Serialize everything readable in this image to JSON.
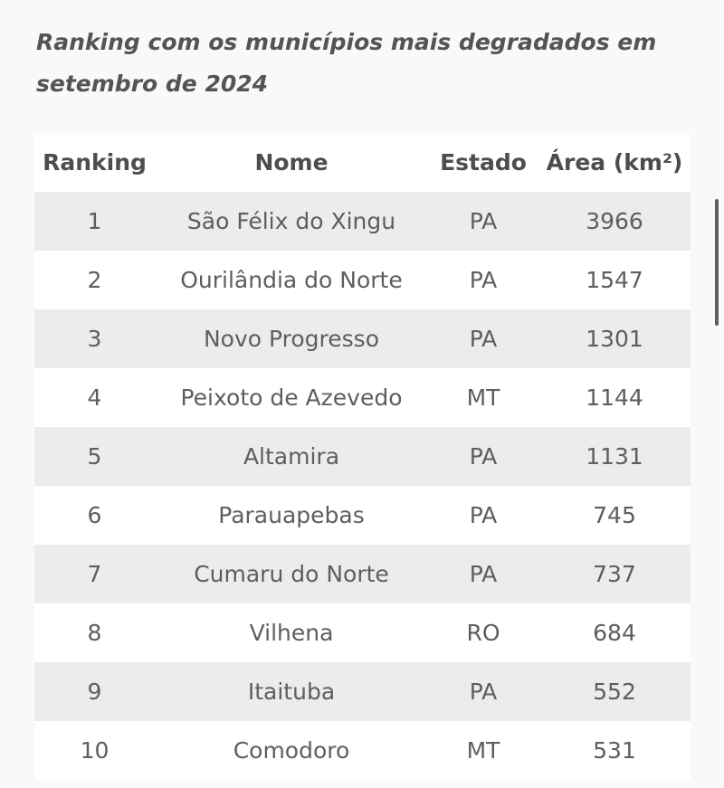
{
  "title": "Ranking com os municípios mais degradados em setembro de 2024",
  "table": {
    "headers": {
      "rank": "Ranking",
      "name": "Nome",
      "state": "Estado",
      "area": "Área (km²)"
    },
    "rows": [
      {
        "rank": "1",
        "name": "São Félix do Xingu",
        "state": "PA",
        "area": "3966"
      },
      {
        "rank": "2",
        "name": "Ourilândia do Norte",
        "state": "PA",
        "area": "1547"
      },
      {
        "rank": "3",
        "name": "Novo Progresso",
        "state": "PA",
        "area": "1301"
      },
      {
        "rank": "4",
        "name": "Peixoto de Azevedo",
        "state": "MT",
        "area": "1144"
      },
      {
        "rank": "5",
        "name": "Altamira",
        "state": "PA",
        "area": "1131"
      },
      {
        "rank": "6",
        "name": "Parauapebas",
        "state": "PA",
        "area": "745"
      },
      {
        "rank": "7",
        "name": "Cumaru do Norte",
        "state": "PA",
        "area": "737"
      },
      {
        "rank": "8",
        "name": "Vilhena",
        "state": "RO",
        "area": "684"
      },
      {
        "rank": "9",
        "name": "Itaituba",
        "state": "PA",
        "area": "552"
      },
      {
        "rank": "10",
        "name": "Comodoro",
        "state": "MT",
        "area": "531"
      }
    ]
  },
  "colors": {
    "background": "#f9f9f9",
    "row_shaded": "#ececec",
    "row_plain": "#ffffff",
    "text": "#5e5e5e"
  }
}
